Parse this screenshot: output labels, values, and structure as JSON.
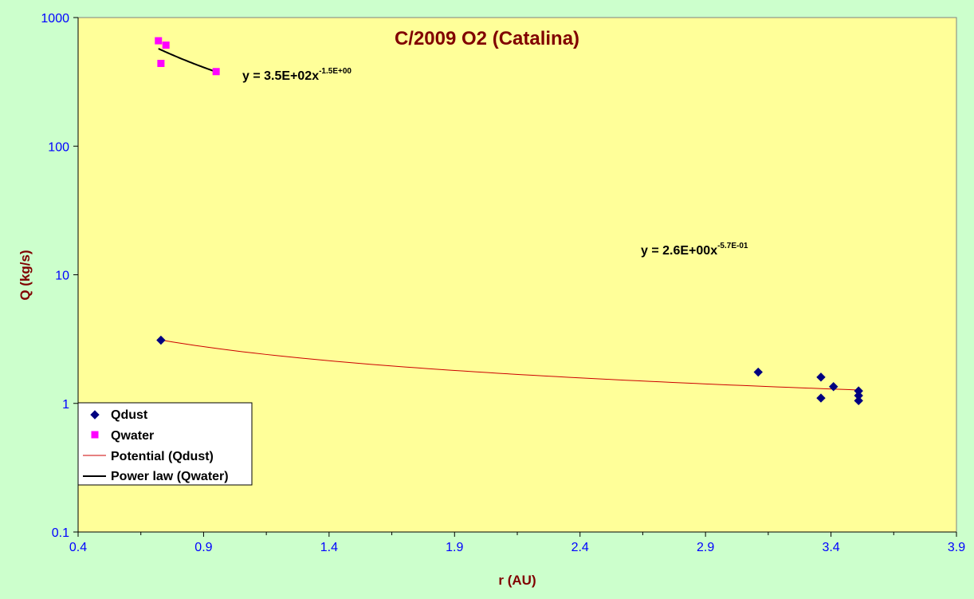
{
  "chart_data": {
    "type": "scatter",
    "title": "C/2009 O2 (Catalina)",
    "xlabel": "r (AU)",
    "ylabel": "Q (kg/s)",
    "xlim": [
      0.4,
      3.9
    ],
    "ylim": [
      0.1,
      1000
    ],
    "yscale": "log",
    "x_ticks": [
      "0.4",
      "0.9",
      "1.4",
      "1.9",
      "2.4",
      "2.9",
      "3.4",
      "3.9"
    ],
    "y_ticks": [
      "0.1",
      "1",
      "10",
      "100",
      "1000"
    ],
    "grid": false,
    "legend_position": "bottom-left",
    "series": [
      {
        "name": "Qdust",
        "marker": "diamond",
        "color": "#000080",
        "points": [
          {
            "x": 0.73,
            "y": 3.1
          },
          {
            "x": 3.11,
            "y": 1.75
          },
          {
            "x": 3.36,
            "y": 1.6
          },
          {
            "x": 3.36,
            "y": 1.1
          },
          {
            "x": 3.41,
            "y": 1.35
          },
          {
            "x": 3.51,
            "y": 1.25
          },
          {
            "x": 3.51,
            "y": 1.15
          },
          {
            "x": 3.51,
            "y": 1.05
          }
        ]
      },
      {
        "name": "Qwater",
        "marker": "square",
        "color": "#ff00ff",
        "points": [
          {
            "x": 0.72,
            "y": 660
          },
          {
            "x": 0.75,
            "y": 610
          },
          {
            "x": 0.73,
            "y": 440
          },
          {
            "x": 0.95,
            "y": 380
          }
        ]
      }
    ],
    "trendlines": [
      {
        "name": "Potential (Qdust)",
        "color": "#cc0000",
        "a": 2.6,
        "b": -0.57,
        "x_range": [
          0.73,
          3.51
        ],
        "width": 1,
        "equation": "y = 2.6E+00x",
        "exponent": "-5.7E-01"
      },
      {
        "name": "Power law (Qwater)",
        "color": "#000000",
        "a": 350,
        "b": -1.5,
        "x_range": [
          0.72,
          0.95
        ],
        "width": 2,
        "equation": "y = 3.5E+02x",
        "exponent": "-1.5E+00"
      }
    ]
  }
}
